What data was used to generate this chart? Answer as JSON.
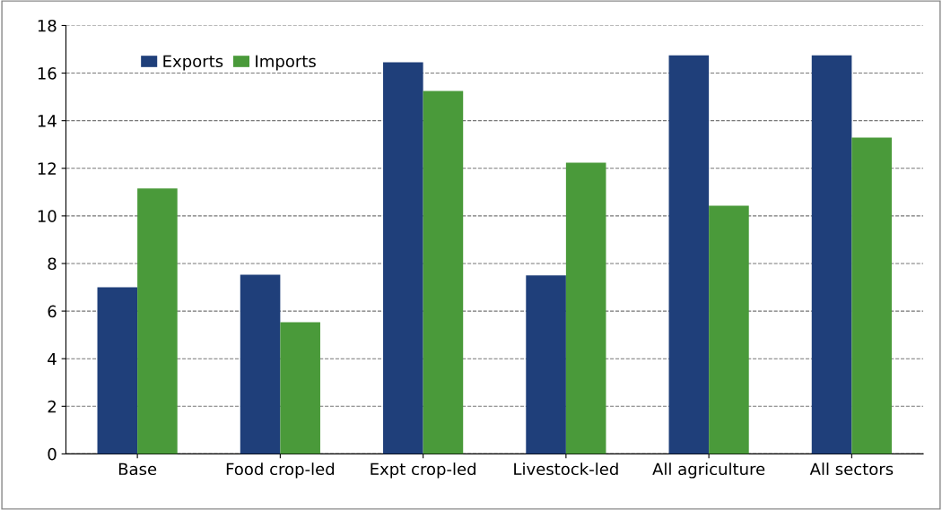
{
  "chart_data": {
    "type": "bar",
    "categories": [
      "Base",
      "Food crop-led",
      "Expt crop-led",
      "Livestock-led",
      "All agriculture",
      "All sectors"
    ],
    "series": [
      {
        "name": "Exports",
        "color": "#1f3f7a",
        "values": [
          7.0,
          7.53,
          16.45,
          7.5,
          16.75,
          16.75
        ]
      },
      {
        "name": "Imports",
        "color": "#4a9a3a",
        "values": [
          11.15,
          5.53,
          15.25,
          12.24,
          10.43,
          13.29
        ]
      }
    ],
    "ylim": [
      0,
      18
    ],
    "yticks": [
      0,
      2,
      4,
      6,
      8,
      10,
      12,
      14,
      16,
      18
    ],
    "grid": "y",
    "legend": "top left"
  }
}
